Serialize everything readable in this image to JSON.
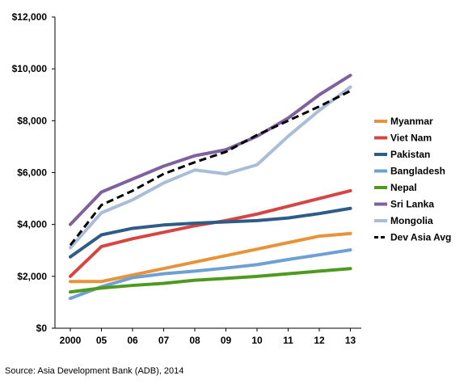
{
  "chart_data": {
    "type": "line",
    "categories": [
      "2000",
      "05",
      "06",
      "07",
      "08",
      "09",
      "10",
      "11",
      "12",
      "13"
    ],
    "ylim": [
      0,
      12000
    ],
    "yticks": [
      "$0",
      "$2,000",
      "$4,000",
      "$6,000",
      "$8,000",
      "$10,000",
      "$12,000"
    ],
    "ytick_values": [
      0,
      2000,
      4000,
      6000,
      8000,
      10000,
      12000
    ],
    "grid": false,
    "legend_position": "right",
    "series": [
      {
        "name": "Myanmar",
        "color": "#E8923A",
        "dashed": false,
        "values": [
          1800,
          1800,
          2050,
          2300,
          2550,
          2800,
          3050,
          3300,
          3550,
          3650
        ]
      },
      {
        "name": "Viet Nam",
        "color": "#D64541",
        "dashed": false,
        "values": [
          2000,
          3150,
          3450,
          3700,
          3950,
          4150,
          4400,
          4700,
          5000,
          5300
        ]
      },
      {
        "name": "Pakistan",
        "color": "#2D5C86",
        "dashed": false,
        "values": [
          2750,
          3600,
          3850,
          3980,
          4050,
          4100,
          4150,
          4250,
          4420,
          4620
        ]
      },
      {
        "name": "Bangladesh",
        "color": "#6FA0D4",
        "dashed": false,
        "values": [
          1150,
          1600,
          1950,
          2100,
          2200,
          2320,
          2450,
          2650,
          2830,
          3020
        ]
      },
      {
        "name": "Nepal",
        "color": "#4E9A1F",
        "dashed": false,
        "values": [
          1400,
          1550,
          1650,
          1730,
          1850,
          1920,
          2000,
          2100,
          2200,
          2300
        ]
      },
      {
        "name": "Sri Lanka",
        "color": "#7E619E",
        "dashed": false,
        "values": [
          4000,
          5250,
          5750,
          6250,
          6650,
          6880,
          7400,
          8100,
          9000,
          9750
        ]
      },
      {
        "name": "Mongolia",
        "color": "#A9BDD8",
        "dashed": false,
        "values": [
          3100,
          4450,
          4950,
          5600,
          6100,
          5950,
          6300,
          7400,
          8400,
          9300
        ]
      },
      {
        "name": "Dev Asia Avg",
        "color": "#000000",
        "dashed": true,
        "values": [
          3200,
          4750,
          5300,
          5950,
          6400,
          6800,
          7450,
          8000,
          8550,
          9150
        ]
      }
    ]
  },
  "source": "Source: Asia Development Bank (ADB), 2014"
}
